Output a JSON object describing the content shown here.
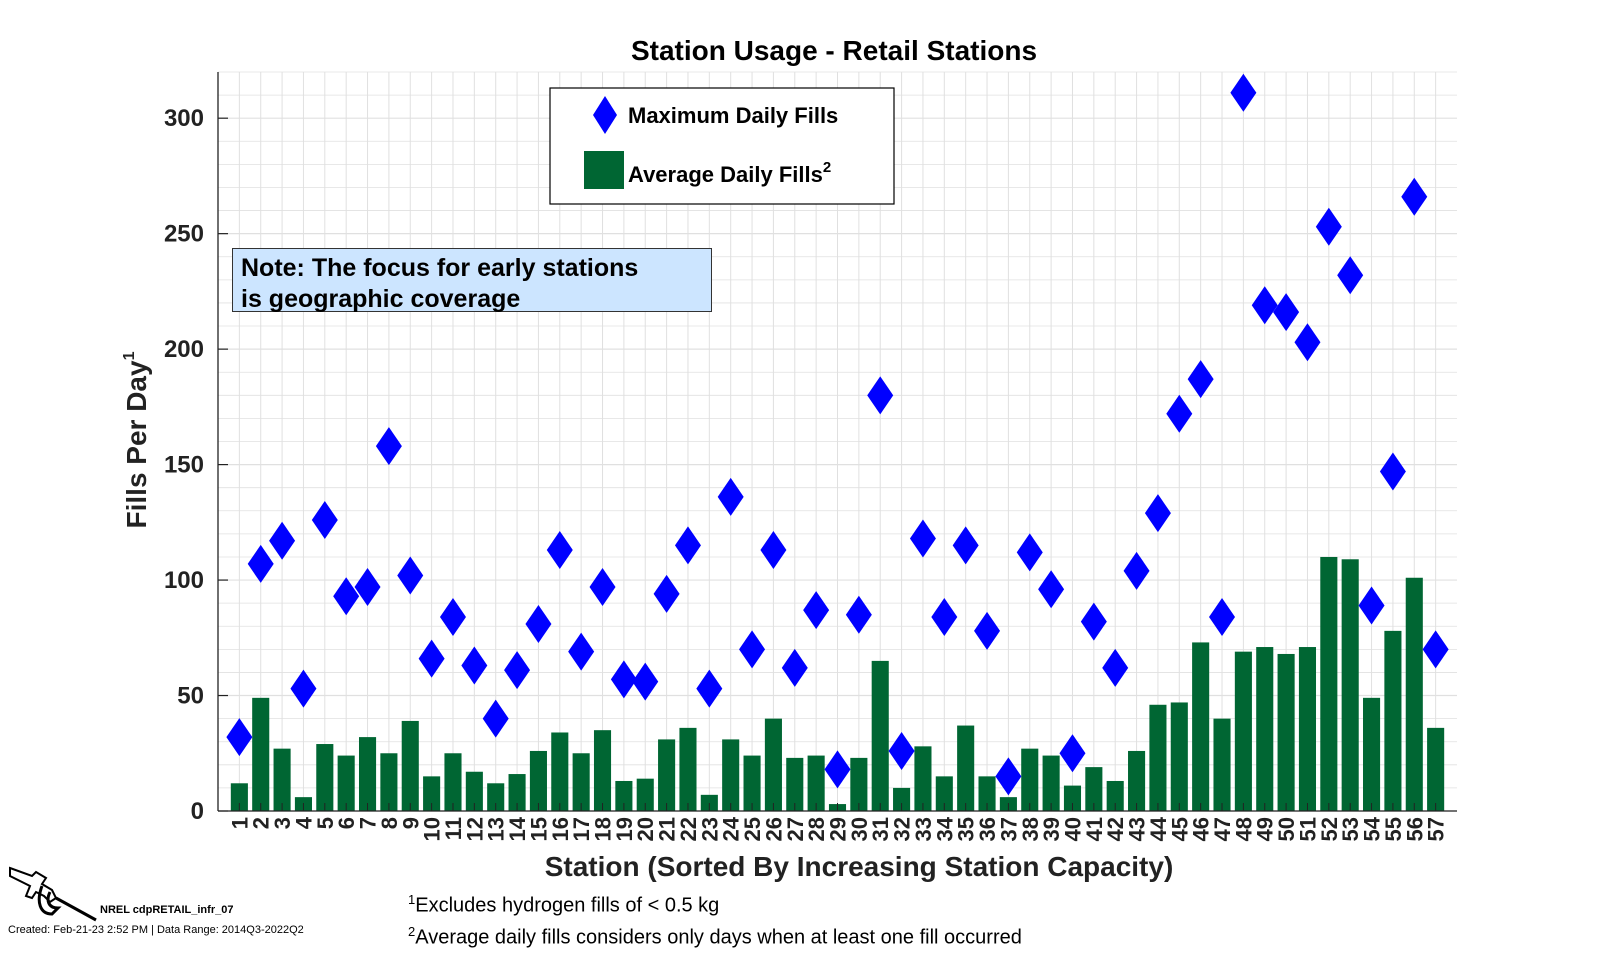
{
  "chart_data": {
    "type": "bar",
    "title": "Station Usage - Retail Stations",
    "xlabel": "Station (Sorted By Increasing Station Capacity)",
    "ylabel": "Fills Per Day",
    "ylabel_superscript": "1",
    "ylim": [
      0,
      320
    ],
    "yticks": [
      0,
      50,
      100,
      150,
      200,
      250,
      300
    ],
    "grid": true,
    "categories": [
      "1",
      "2",
      "3",
      "4",
      "5",
      "6",
      "7",
      "8",
      "9",
      "10",
      "11",
      "12",
      "13",
      "14",
      "15",
      "16",
      "17",
      "18",
      "19",
      "20",
      "21",
      "22",
      "23",
      "24",
      "25",
      "26",
      "27",
      "28",
      "29",
      "30",
      "31",
      "32",
      "33",
      "34",
      "35",
      "36",
      "37",
      "38",
      "39",
      "40",
      "41",
      "42",
      "43",
      "44",
      "45",
      "46",
      "47",
      "48",
      "49",
      "50",
      "51",
      "52",
      "53",
      "54",
      "55",
      "56",
      "57"
    ],
    "series": [
      {
        "name": "Average Daily Fills",
        "name_superscript": "2",
        "type": "bar",
        "color": "#006633",
        "values": [
          12,
          49,
          27,
          6,
          29,
          24,
          32,
          25,
          39,
          15,
          25,
          17,
          12,
          16,
          26,
          34,
          25,
          35,
          13,
          14,
          31,
          36,
          7,
          31,
          24,
          40,
          23,
          24,
          3,
          23,
          65,
          10,
          28,
          15,
          37,
          15,
          6,
          27,
          24,
          11,
          19,
          13,
          26,
          46,
          47,
          73,
          40,
          69,
          71,
          68,
          71,
          110,
          109,
          49,
          78,
          101,
          36
        ]
      },
      {
        "name": "Maximum Daily Fills",
        "type": "diamond",
        "color": "#0000ff",
        "values": [
          32,
          107,
          117,
          53,
          126,
          93,
          97,
          158,
          102,
          66,
          84,
          63,
          40,
          61,
          81,
          113,
          69,
          97,
          57,
          56,
          94,
          115,
          53,
          136,
          70,
          113,
          62,
          87,
          18,
          85,
          180,
          26,
          118,
          84,
          115,
          78,
          15,
          112,
          96,
          25,
          82,
          62,
          104,
          129,
          172,
          187,
          84,
          311,
          219,
          216,
          203,
          253,
          232,
          89,
          147,
          266,
          70
        ]
      }
    ],
    "legend_position": "top-center",
    "annotation": {
      "line1": "Note: The focus for early stations",
      "line2": "is geographic coverage"
    }
  },
  "footnotes": {
    "fn1_mark": "1",
    "fn1_text": "Excludes hydrogen fills of < 0.5 kg",
    "fn2_mark": "2",
    "fn2_text": "Average daily fills considers only days when at least one fill occurred"
  },
  "branding": {
    "id_label": "NREL cdpRETAIL_infr_07",
    "created": "Created: Feb-21-23  2:52 PM | Data Range: 2014Q3-2022Q2",
    "icon": "fuel-nozzle-icon"
  },
  "colors": {
    "bar": "#006633",
    "diamond": "#0000ff",
    "note_bg": "#cce5ff",
    "grid": "#e0e0e0"
  }
}
